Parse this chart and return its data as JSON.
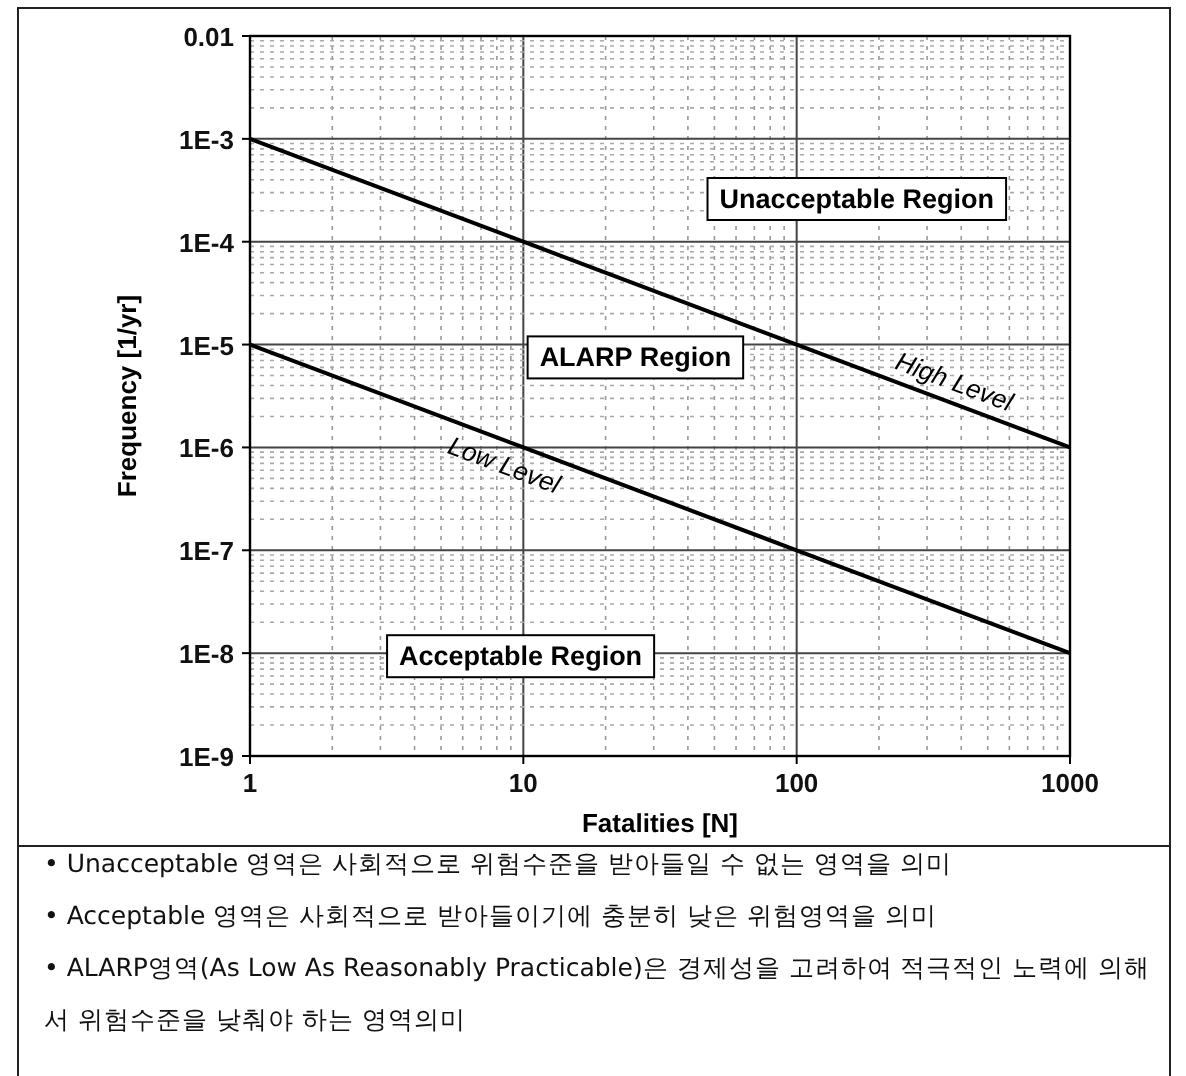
{
  "chart_data": {
    "type": "line",
    "xlabel": "Fatalities [N]",
    "ylabel": "Frequency [1/yr]",
    "log": "xy",
    "xlim": [
      1,
      1000
    ],
    "ylim": [
      1e-09,
      0.01
    ],
    "xticks": [
      1,
      10,
      100,
      1000
    ],
    "yticks": [
      {
        "value": 1e-09,
        "label": "1E-9"
      },
      {
        "value": 1e-08,
        "label": "1E-8"
      },
      {
        "value": 1e-07,
        "label": "1E-7"
      },
      {
        "value": 1e-06,
        "label": "1E-6"
      },
      {
        "value": 1e-05,
        "label": "1E-5"
      },
      {
        "value": 0.0001,
        "label": "1E-4"
      },
      {
        "value": 0.001,
        "label": "1E-3"
      },
      0.01
    ],
    "grid": true,
    "line_style": "solid",
    "marker": "none",
    "x": [
      1,
      10,
      100,
      1000
    ],
    "series": [
      {
        "name": "High Level",
        "color": "#000000",
        "values": [
          0.001,
          0.0001,
          1e-05,
          1e-06
        ]
      },
      {
        "name": "Low Level",
        "color": "#000000",
        "values": [
          1e-05,
          1e-06,
          1e-07,
          1e-08
        ]
      }
    ],
    "annotations": [
      "Unacceptable Region",
      "ALARP Region",
      "Acceptable Region",
      "• Unacceptable 영역은 사회적으로 위험수준을 받아들일 수 없는 영역을 의미",
      "• Acceptable 영역은 사회적으로 받아들이기에 충분히 낮은 위험영역을 의미",
      "• ALARP영역(As Low As Reasonably Practicable)은 경제성을 고려하여 적극적인 노력에 의해서 위험수준을 낮춰야 하는 영역의미"
    ]
  }
}
